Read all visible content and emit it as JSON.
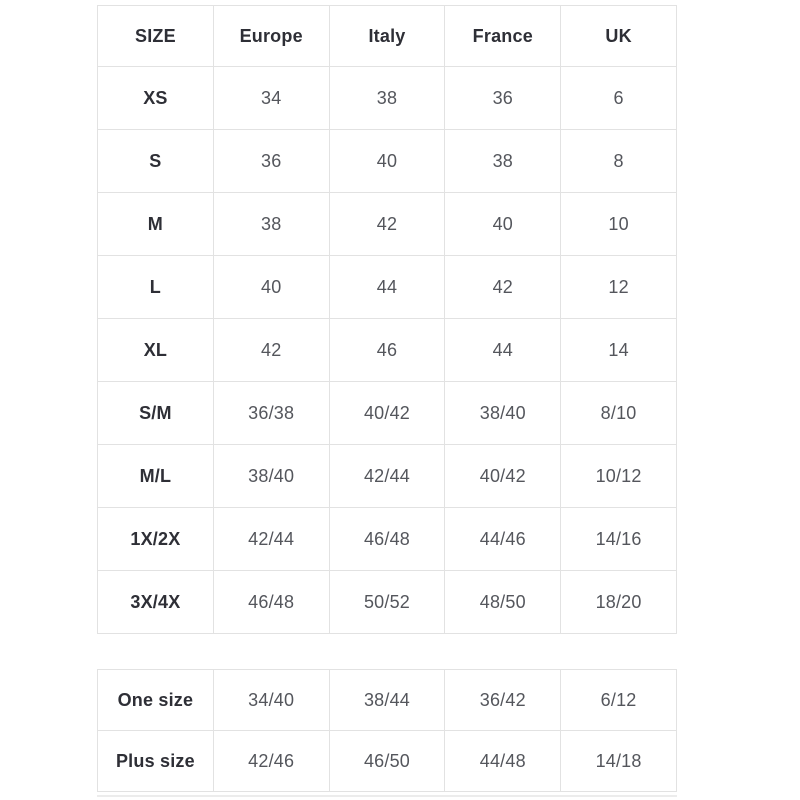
{
  "colors": {
    "background": "#ffffff",
    "border": "#e2e2e2",
    "header_text": "#2e2f36",
    "value_text": "#54565c",
    "shadow_line": "#ececec"
  },
  "size_table": {
    "columns": [
      "SIZE",
      "Europe",
      "Italy",
      "France",
      "UK"
    ],
    "rows": [
      [
        "XS",
        "34",
        "38",
        "36",
        "6"
      ],
      [
        "S",
        "36",
        "40",
        "38",
        "8"
      ],
      [
        "M",
        "38",
        "42",
        "40",
        "10"
      ],
      [
        "L",
        "40",
        "44",
        "42",
        "12"
      ],
      [
        "XL",
        "42",
        "46",
        "44",
        "14"
      ],
      [
        "S/M",
        "36/38",
        "40/42",
        "38/40",
        "8/10"
      ],
      [
        "M/L",
        "38/40",
        "42/44",
        "40/42",
        "10/12"
      ],
      [
        "1X/2X",
        "42/44",
        "46/48",
        "44/46",
        "14/16"
      ],
      [
        "3X/4X",
        "46/48",
        "50/52",
        "48/50",
        "18/20"
      ]
    ]
  },
  "special_size_table": {
    "rows": [
      [
        "One size",
        "34/40",
        "38/44",
        "36/42",
        "6/12"
      ],
      [
        "Plus size",
        "42/46",
        "46/50",
        "44/48",
        "14/18"
      ]
    ]
  }
}
